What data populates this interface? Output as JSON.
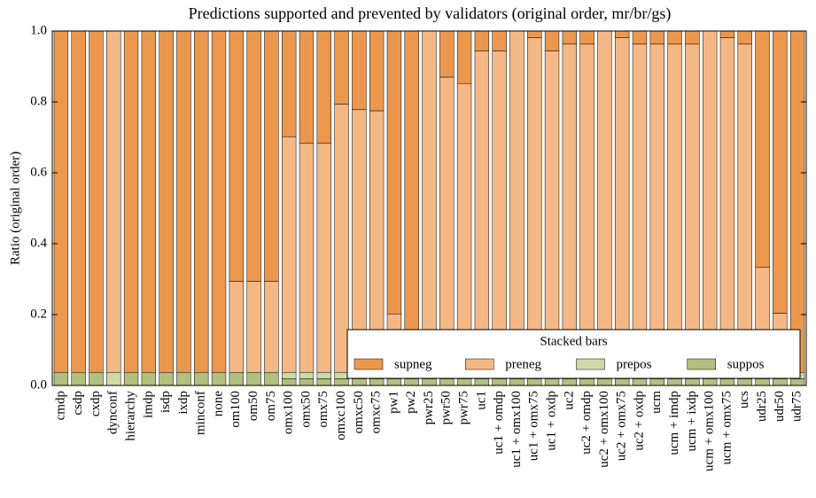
{
  "chart_data": {
    "type": "stacked_bar",
    "title": "Predictions supported and prevented by validators (original order, mr/br/gs)",
    "y_label": "Ratio (original order)",
    "categories": [
      "cmdp",
      "csdp",
      "cxdp",
      "dynconf",
      "hierarchy",
      "imdp",
      "isdp",
      "ixdp",
      "minconf",
      "none",
      "om100",
      "om50",
      "om75",
      "omx100",
      "omx50",
      "omx75",
      "omxc100",
      "omxc50",
      "omxc75",
      "pw1",
      "pw2",
      "pwr25",
      "pwr50",
      "pwr75",
      "uc1",
      "uc1 + omdp",
      "uc1 + omx100",
      "uc1 + omx75",
      "uc1 + oxdp",
      "uc2",
      "uc2 + omdp",
      "uc2 + omx100",
      "uc2 + omx75",
      "uc2 + oxdp",
      "ucm",
      "ucm + imdp",
      "ucm + ixdp",
      "ucm + omx100",
      "ucm + omx75",
      "ucs",
      "udr25",
      "udr50",
      "udr75"
    ],
    "series": [
      {
        "name": "supneg",
        "color": "#eb984e",
        "values": [
          0.963,
          0.963,
          0.963,
          0,
          0.963,
          0.963,
          0.963,
          0.963,
          0.963,
          0.963,
          0.706,
          0.706,
          0.706,
          0.298,
          0.317,
          0.317,
          0.206,
          0.222,
          0.225,
          0.798,
          0.963,
          0,
          0.13,
          0.148,
          0.056,
          0.056,
          0,
          0.019,
          0.056,
          0.037,
          0.037,
          0,
          0.019,
          0.037,
          0.037,
          0.037,
          0.037,
          0,
          0.019,
          0.037,
          0.667,
          0.796,
          0.963
        ]
      },
      {
        "name": "preneg",
        "color": "#f4b886",
        "values": [
          0,
          0,
          0,
          0.963,
          0,
          0,
          0,
          0,
          0,
          0,
          0.257,
          0.257,
          0.257,
          0.665,
          0.646,
          0.646,
          0.757,
          0.741,
          0.738,
          0.165,
          0,
          0.963,
          0.833,
          0.815,
          0.907,
          0.907,
          0.963,
          0.944,
          0.907,
          0.926,
          0.926,
          0.963,
          0.944,
          0.926,
          0.926,
          0.926,
          0.926,
          0.963,
          0.944,
          0.926,
          0.296,
          0.167,
          0
        ]
      },
      {
        "name": "prepos",
        "color": "#cfd9a8",
        "values": [
          0,
          0,
          0,
          0.037,
          0,
          0,
          0,
          0,
          0,
          0,
          0,
          0,
          0,
          0.018,
          0.018,
          0.018,
          0.018,
          0.018,
          0.018,
          0.018,
          0.018,
          0.018,
          0.018,
          0.018,
          0.018,
          0.018,
          0.018,
          0.018,
          0.018,
          0.018,
          0.018,
          0.018,
          0.018,
          0.018,
          0.018,
          0.018,
          0.018,
          0.018,
          0.018,
          0.018,
          0.018,
          0.018,
          0.018
        ]
      },
      {
        "name": "suppos",
        "color": "#b2bf7e",
        "values": [
          0.037,
          0.037,
          0.037,
          0,
          0.037,
          0.037,
          0.037,
          0.037,
          0.037,
          0.037,
          0.037,
          0.037,
          0.037,
          0.019,
          0.019,
          0.019,
          0.019,
          0.019,
          0.019,
          0.019,
          0.019,
          0.019,
          0.019,
          0.019,
          0.019,
          0.019,
          0.019,
          0.019,
          0.019,
          0.019,
          0.019,
          0.019,
          0.019,
          0.019,
          0.019,
          0.019,
          0.019,
          0.019,
          0.019,
          0.019,
          0.019,
          0.019,
          0.019
        ]
      }
    ],
    "ylim": [
      0,
      1
    ],
    "yticks": [
      {
        "value": 0,
        "label": "0.0"
      },
      0.2,
      0.4,
      0.6,
      0.8,
      {
        "value": 1,
        "label": "1.0"
      }
    ],
    "legend": "lower right",
    "legend_title": "Stacked bars"
  }
}
